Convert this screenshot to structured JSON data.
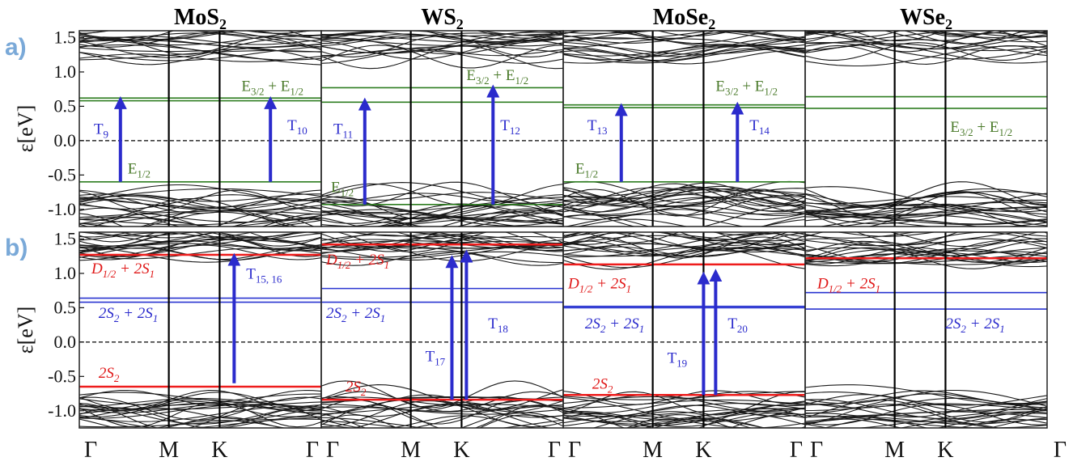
{
  "figure": {
    "panel_tags": [
      "a)",
      "b)"
    ],
    "ylabel": "ε[eV]",
    "kpath": [
      "Γ",
      "M",
      "K",
      "Γ"
    ]
  },
  "colors": {
    "bands": "#1a1a1a",
    "green_levels": "#2e7d20",
    "green_text": "#4a7a2a",
    "blue_levels": "#2a35d0",
    "arrow": "#2b2bcc",
    "red_levels": "#ee1c1c",
    "red_text": "#e01818",
    "transition_text": "#2b2bcc",
    "fermi": "#000000",
    "tag": "#7aa9d8"
  },
  "chart_data": [
    {
      "panel": "a",
      "column": 0,
      "title": "MoS",
      "title_sub": "2",
      "type": "line",
      "ylim": [
        -1.25,
        1.6
      ],
      "yticks": [
        "1.5",
        "1.0",
        "0.5",
        "0.0",
        "-0.5",
        "-1.0"
      ],
      "defect_levels": [
        {
          "energy": 0.62,
          "color": "green"
        },
        {
          "energy": 0.58,
          "color": "green"
        },
        {
          "energy": -0.6,
          "color": "green"
        }
      ],
      "labels": [
        {
          "text": "E",
          "sub": "1/2",
          "x": 0.2,
          "y": -0.48,
          "color": "green"
        },
        {
          "text": "E",
          "sub": "3/2",
          "text2": " + E",
          "sub2": "1/2",
          "x": 0.67,
          "y": 0.72,
          "color": "green"
        },
        {
          "text": "T",
          "sub": "9",
          "x": 0.06,
          "y": 0.1,
          "color": "blue"
        },
        {
          "text": "T",
          "sub": "10",
          "x": 0.86,
          "y": 0.15,
          "color": "blue"
        }
      ],
      "transitions": [
        {
          "x": 0.17,
          "from": -0.6,
          "to": 0.6
        },
        {
          "x": 0.79,
          "from": -0.6,
          "to": 0.6
        }
      ]
    },
    {
      "panel": "a",
      "column": 1,
      "title": "WS",
      "title_sub": "2",
      "type": "line",
      "defect_levels": [
        {
          "energy": 0.77,
          "color": "green"
        },
        {
          "energy": 0.56,
          "color": "green"
        },
        {
          "energy": -0.93,
          "color": "green"
        }
      ],
      "labels": [
        {
          "text": "E",
          "sub": "1/2",
          "x": 0.04,
          "y": -0.75,
          "color": "green"
        },
        {
          "text": "E",
          "sub": "3/2",
          "text2": " + E",
          "sub2": "1/2",
          "x": 0.6,
          "y": 0.88,
          "color": "green"
        },
        {
          "text": "T",
          "sub": "11",
          "x": 0.05,
          "y": 0.1,
          "color": "blue"
        },
        {
          "text": "T",
          "sub": "12",
          "x": 0.74,
          "y": 0.15,
          "color": "blue"
        }
      ],
      "transitions": [
        {
          "x": 0.18,
          "from": -0.93,
          "to": 0.58
        },
        {
          "x": 0.71,
          "from": -0.93,
          "to": 0.77
        }
      ]
    },
    {
      "panel": "a",
      "column": 2,
      "title": "MoSe",
      "title_sub": "2",
      "type": "line",
      "defect_levels": [
        {
          "energy": 0.52,
          "color": "green"
        },
        {
          "energy": 0.48,
          "color": "green"
        },
        {
          "energy": -0.6,
          "color": "green"
        }
      ],
      "labels": [
        {
          "text": "E",
          "sub": "1/2",
          "x": 0.05,
          "y": -0.48,
          "color": "green"
        },
        {
          "text": "E",
          "sub": "3/2",
          "text2": " + E",
          "sub2": "1/2",
          "x": 0.63,
          "y": 0.72,
          "color": "green"
        },
        {
          "text": "T",
          "sub": "13",
          "x": 0.1,
          "y": 0.15,
          "color": "blue"
        },
        {
          "text": "T",
          "sub": "14",
          "x": 0.77,
          "y": 0.15,
          "color": "blue"
        }
      ],
      "transitions": [
        {
          "x": 0.24,
          "from": -0.6,
          "to": 0.5
        },
        {
          "x": 0.72,
          "from": -0.6,
          "to": 0.52
        }
      ]
    },
    {
      "panel": "a",
      "column": 3,
      "title": "WSe",
      "title_sub": "2",
      "type": "line",
      "defect_levels": [
        {
          "energy": 0.64,
          "color": "green"
        },
        {
          "energy": 0.47,
          "color": "green"
        }
      ],
      "labels": [
        {
          "text": "E",
          "sub": "3/2",
          "text2": " + E",
          "sub2": "1/2",
          "x": 0.6,
          "y": 0.13,
          "color": "green"
        }
      ],
      "transitions": []
    },
    {
      "panel": "b",
      "column": 0,
      "type": "line",
      "defect_levels": [
        {
          "energy": 1.27,
          "color": "red"
        },
        {
          "energy": 0.64,
          "color": "blue"
        },
        {
          "energy": 0.58,
          "color": "blue"
        },
        {
          "energy": -0.65,
          "color": "red"
        }
      ],
      "labels": [
        {
          "text": "D",
          "sub": "1/2",
          "text2": " + 2S",
          "sub2": "1",
          "x": 0.05,
          "y": 1.0,
          "color": "red",
          "italic": true
        },
        {
          "text": "2S",
          "sub": "2",
          "text2": " + 2S",
          "sub2": "1",
          "x": 0.08,
          "y": 0.35,
          "color": "blue",
          "italic": true
        },
        {
          "text": "2S",
          "sub": "2",
          "x": 0.08,
          "y": -0.52,
          "color": "red",
          "italic": true
        },
        {
          "text": "T",
          "sub": "15, 16",
          "x": 0.69,
          "y": 0.92,
          "color": "blue"
        }
      ],
      "transitions": [
        {
          "x": 0.64,
          "from": -0.6,
          "to": 1.25
        }
      ]
    },
    {
      "panel": "b",
      "column": 1,
      "type": "line",
      "defect_levels": [
        {
          "energy": 1.42,
          "color": "red"
        },
        {
          "energy": 0.78,
          "color": "blue"
        },
        {
          "energy": 0.58,
          "color": "blue"
        },
        {
          "energy": -0.84,
          "color": "red"
        }
      ],
      "labels": [
        {
          "text": "D",
          "sub": "1/2",
          "text2": " + 2S",
          "sub2": "1",
          "x": 0.02,
          "y": 1.13,
          "color": "red",
          "italic": true
        },
        {
          "text": "2S",
          "sub": "2",
          "text2": " + 2S",
          "sub2": "1",
          "x": 0.02,
          "y": 0.35,
          "color": "blue",
          "italic": true
        },
        {
          "text": "2S",
          "sub": "2",
          "x": 0.1,
          "y": -0.72,
          "color": "red",
          "italic": true
        },
        {
          "text": "T",
          "sub": "17",
          "x": 0.43,
          "y": -0.28,
          "color": "blue"
        },
        {
          "text": "T",
          "sub": "18",
          "x": 0.69,
          "y": 0.2,
          "color": "blue"
        }
      ],
      "transitions": [
        {
          "x": 0.54,
          "from": -0.84,
          "to": 1.22
        },
        {
          "x": 0.6,
          "from": -0.84,
          "to": 1.3
        }
      ]
    },
    {
      "panel": "b",
      "column": 2,
      "type": "line",
      "defect_levels": [
        {
          "energy": 1.13,
          "color": "red"
        },
        {
          "energy": 0.52,
          "color": "blue"
        },
        {
          "energy": 0.5,
          "color": "blue"
        },
        {
          "energy": -0.77,
          "color": "red"
        }
      ],
      "labels": [
        {
          "text": "D",
          "sub": "1/2",
          "text2": " + 2S",
          "sub2": "1",
          "x": 0.02,
          "y": 0.78,
          "color": "red",
          "italic": true
        },
        {
          "text": "2S",
          "sub": "2",
          "text2": " + 2S",
          "sub2": "1",
          "x": 0.09,
          "y": 0.2,
          "color": "blue",
          "italic": true
        },
        {
          "text": "2S",
          "sub": "2",
          "x": 0.12,
          "y": -0.68,
          "color": "red",
          "italic": true
        },
        {
          "text": "T",
          "sub": "19",
          "x": 0.43,
          "y": -0.3,
          "color": "blue"
        },
        {
          "text": "T",
          "sub": "20",
          "x": 0.68,
          "y": 0.2,
          "color": "blue"
        }
      ],
      "transitions": [
        {
          "x": 0.58,
          "from": -0.77,
          "to": 0.98
        },
        {
          "x": 0.63,
          "from": -0.77,
          "to": 1.02
        }
      ]
    },
    {
      "panel": "b",
      "column": 3,
      "type": "line",
      "defect_levels": [
        {
          "energy": 1.22,
          "color": "red"
        },
        {
          "energy": 0.72,
          "color": "blue"
        },
        {
          "energy": 0.48,
          "color": "blue"
        }
      ],
      "labels": [
        {
          "text": "D",
          "sub": "1/2",
          "text2": " + 2S",
          "sub2": "1",
          "x": 0.05,
          "y": 0.78,
          "color": "red",
          "italic": true
        },
        {
          "text": "2S",
          "sub": "2",
          "text2": " + 2S",
          "sub2": "1",
          "x": 0.58,
          "y": 0.2,
          "color": "blue",
          "italic": true
        }
      ],
      "transitions": []
    }
  ]
}
